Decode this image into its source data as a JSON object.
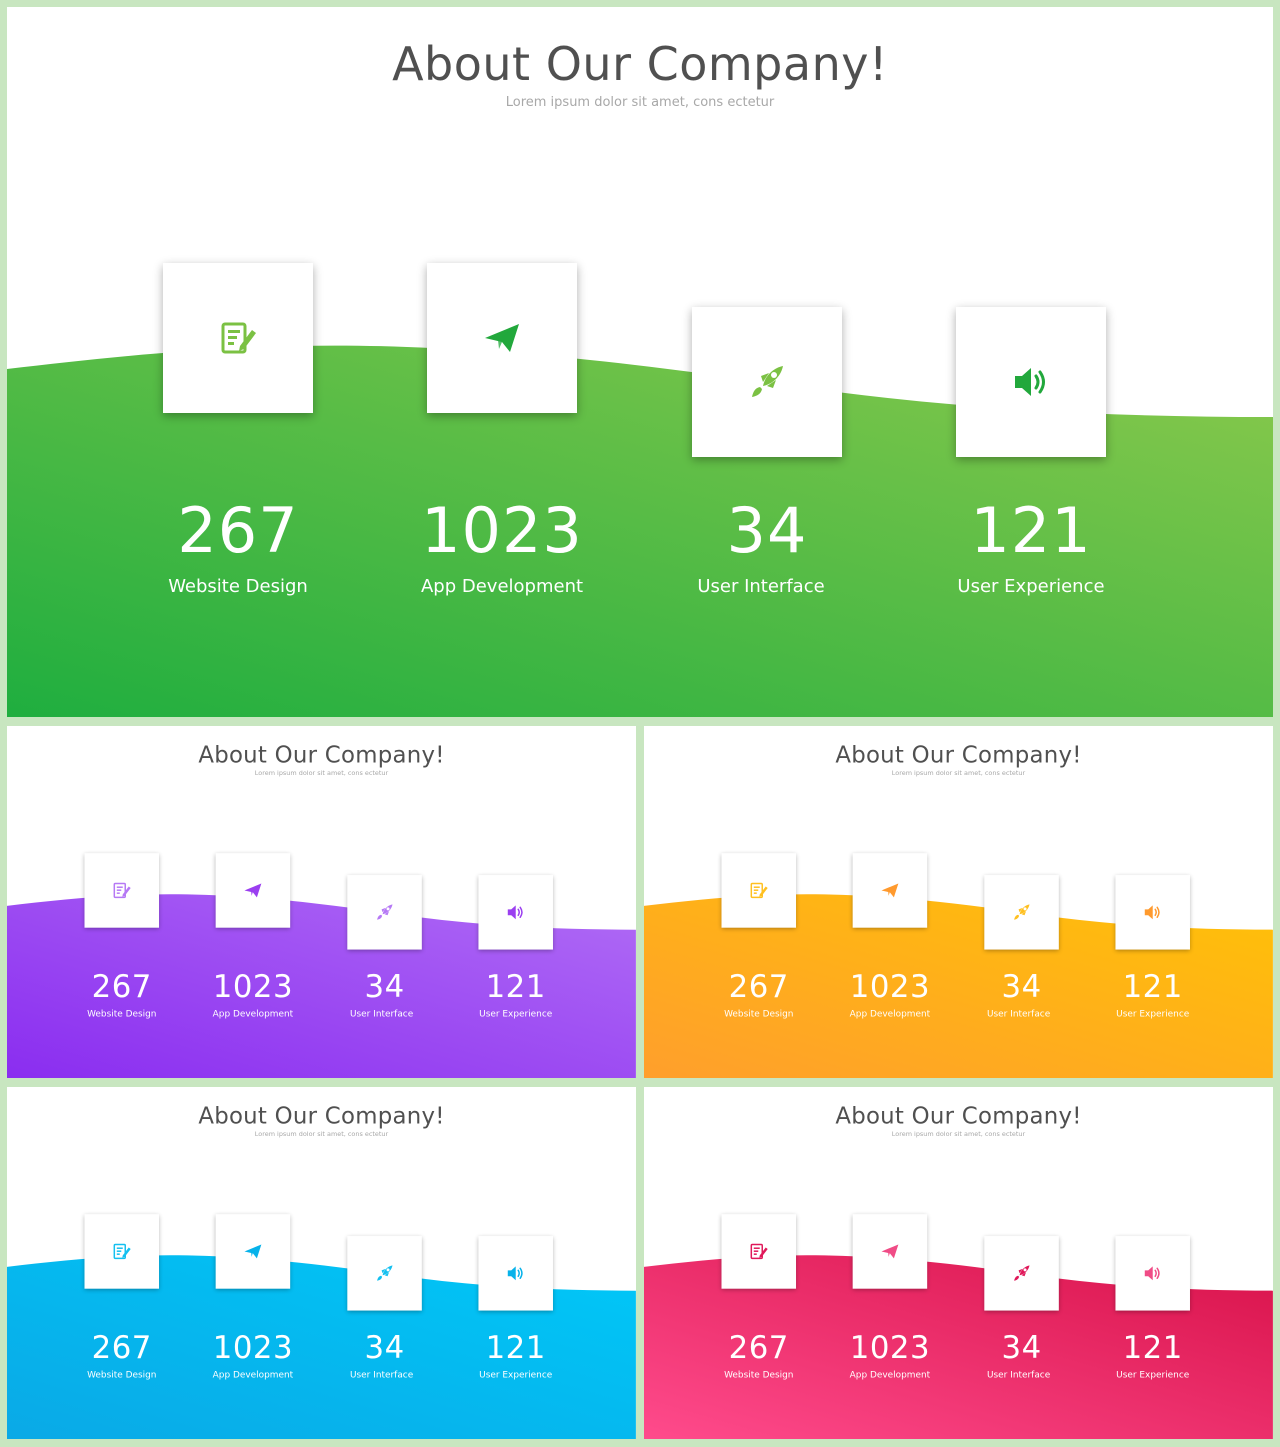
{
  "title": "About Our Company!",
  "subtitle": "Lorem ipsum dolor sit amet, cons ectetur",
  "items": [
    {
      "value": "267",
      "label": "Website Design",
      "icon": "document-edit-icon"
    },
    {
      "value": "1023",
      "label": "App Development",
      "icon": "paper-plane-icon"
    },
    {
      "value": "34",
      "label": "User Interface",
      "icon": "rocket-icon"
    },
    {
      "value": "121",
      "label": "User Experience",
      "icon": "speaker-icon"
    }
  ],
  "themes": {
    "green": {
      "wave_start": "#8bc94c",
      "wave_end": "#1fae3f",
      "icon": "#22a83c",
      "icon_alt": "#7bc143"
    },
    "purple": {
      "wave_start": "#b06cf5",
      "wave_end": "#8a2df0",
      "icon": "#9b3ff0",
      "icon_alt": "#b679f5"
    },
    "orange": {
      "wave_start": "#ffc107",
      "wave_end": "#ff9f2c",
      "icon": "#ff9a2e",
      "icon_alt": "#ffc020"
    },
    "blue": {
      "wave_start": "#00c8f8",
      "wave_end": "#0aa9e6",
      "icon": "#07b2ea",
      "icon_alt": "#14c0f0"
    },
    "pink": {
      "wave_start": "#ff4b8c",
      "wave_end": "#d8124a",
      "icon": "#e0185a",
      "icon_alt": "#f04c86"
    }
  }
}
